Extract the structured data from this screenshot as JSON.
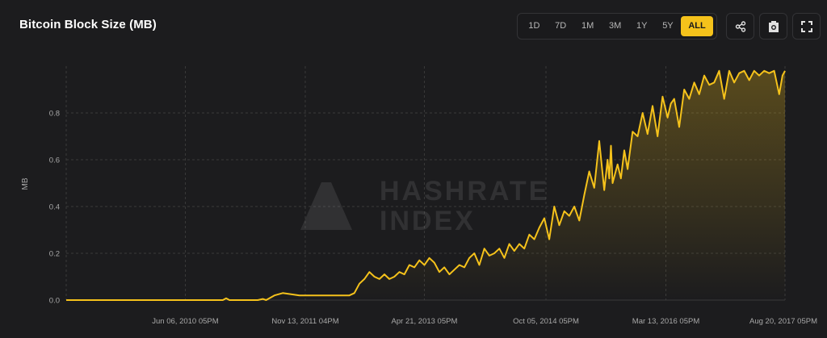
{
  "header": {
    "title": "Bitcoin Block Size (MB)"
  },
  "range_buttons": [
    {
      "label": "1D",
      "active": false
    },
    {
      "label": "7D",
      "active": false
    },
    {
      "label": "1M",
      "active": false
    },
    {
      "label": "3M",
      "active": false
    },
    {
      "label": "1Y",
      "active": false
    },
    {
      "label": "5Y",
      "active": false
    },
    {
      "label": "ALL",
      "active": true
    }
  ],
  "icons": {
    "share": "share-icon",
    "screenshot": "camera-icon",
    "fullscreen": "fullscreen-icon"
  },
  "watermark": {
    "line1": "HASHRATE",
    "line2": "INDEX"
  },
  "colors": {
    "accent": "#f5c21b",
    "background": "#1c1c1e",
    "grid": "#3a3a3a"
  },
  "chart_data": {
    "type": "area",
    "title": "Bitcoin Block Size (MB)",
    "xlabel": "",
    "ylabel": "MB",
    "ylim": [
      0.0,
      1.0
    ],
    "yticks": [
      "0.0",
      "0.2",
      "0.4",
      "0.6",
      "0.8"
    ],
    "xticks": [
      {
        "t": 2010.43,
        "label": "Jun 06, 2010 05PM"
      },
      {
        "t": 2011.87,
        "label": "Nov 13, 2011 04PM"
      },
      {
        "t": 2013.3,
        "label": "Apr 21, 2013 05PM"
      },
      {
        "t": 2014.76,
        "label": "Oct 05, 2014 05PM"
      },
      {
        "t": 2016.2,
        "label": "Mar 13, 2016 05PM"
      },
      {
        "t": 2017.63,
        "label": "Aug 20, 2017 05PM"
      }
    ],
    "grid": true,
    "series": [
      {
        "x": [
          2009.0,
          2009.5,
          2010.0,
          2010.3,
          2010.6,
          2010.88,
          2010.92,
          2010.96,
          2011.0,
          2011.2,
          2011.3,
          2011.36,
          2011.4,
          2011.5,
          2011.6,
          2011.8,
          2012.0,
          2012.2,
          2012.4,
          2012.46,
          2012.52,
          2012.58,
          2012.64,
          2012.7,
          2012.76,
          2012.82,
          2012.88,
          2012.94,
          2013.0,
          2013.06,
          2013.12,
          2013.18,
          2013.24,
          2013.3,
          2013.36,
          2013.42,
          2013.48,
          2013.54,
          2013.6,
          2013.66,
          2013.72,
          2013.78,
          2013.84,
          2013.9,
          2013.96,
          2014.02,
          2014.08,
          2014.14,
          2014.2,
          2014.26,
          2014.32,
          2014.38,
          2014.44,
          2014.5,
          2014.56,
          2014.62,
          2014.68,
          2014.74,
          2014.8,
          2014.86,
          2014.92,
          2014.98,
          2015.04,
          2015.1,
          2015.16,
          2015.22,
          2015.28,
          2015.34,
          2015.4,
          2015.46,
          2015.5,
          2015.52,
          2015.54,
          2015.56,
          2015.62,
          2015.66,
          2015.7,
          2015.74,
          2015.8,
          2015.86,
          2015.92,
          2015.98,
          2016.04,
          2016.1,
          2016.16,
          2016.22,
          2016.26,
          2016.3,
          2016.36,
          2016.42,
          2016.48,
          2016.54,
          2016.6,
          2016.66,
          2016.72,
          2016.78,
          2016.84,
          2016.9,
          2016.96,
          2017.02,
          2017.08,
          2017.14,
          2017.2,
          2017.26,
          2017.32,
          2017.38,
          2017.44,
          2017.5,
          2017.56,
          2017.6,
          2017.63
        ],
        "values": [
          0.0,
          0.0,
          0.0,
          0.0,
          0.0,
          0.0,
          0.008,
          0.0,
          0.0,
          0.0,
          0.0,
          0.005,
          0.0,
          0.02,
          0.03,
          0.02,
          0.02,
          0.02,
          0.02,
          0.03,
          0.07,
          0.09,
          0.12,
          0.1,
          0.09,
          0.11,
          0.09,
          0.1,
          0.12,
          0.11,
          0.15,
          0.14,
          0.17,
          0.15,
          0.18,
          0.16,
          0.12,
          0.14,
          0.11,
          0.13,
          0.15,
          0.14,
          0.18,
          0.2,
          0.15,
          0.22,
          0.19,
          0.2,
          0.22,
          0.18,
          0.24,
          0.21,
          0.24,
          0.22,
          0.28,
          0.26,
          0.31,
          0.35,
          0.26,
          0.4,
          0.32,
          0.38,
          0.36,
          0.4,
          0.34,
          0.45,
          0.55,
          0.48,
          0.68,
          0.47,
          0.6,
          0.52,
          0.66,
          0.5,
          0.58,
          0.52,
          0.64,
          0.56,
          0.72,
          0.7,
          0.8,
          0.71,
          0.83,
          0.7,
          0.87,
          0.78,
          0.84,
          0.86,
          0.74,
          0.9,
          0.86,
          0.93,
          0.88,
          0.96,
          0.92,
          0.93,
          0.98,
          0.86,
          0.98,
          0.93,
          0.97,
          0.98,
          0.94,
          0.98,
          0.96,
          0.98,
          0.97,
          0.98,
          0.88,
          0.96,
          0.98
        ]
      }
    ]
  }
}
